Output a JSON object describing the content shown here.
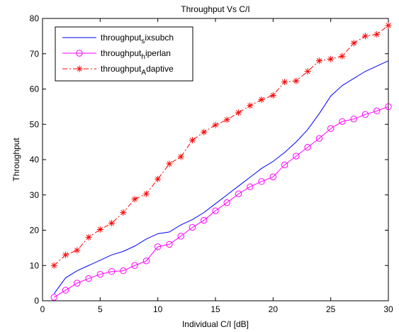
{
  "chart_data": {
    "type": "line",
    "title": "Throughput Vs C/I",
    "xlabel": "Individual C/I [dB]",
    "ylabel": "Throughput",
    "xlim": [
      0,
      30
    ],
    "ylim": [
      0,
      80
    ],
    "xticks": [
      0,
      5,
      10,
      15,
      20,
      25,
      30
    ],
    "yticks": [
      0,
      10,
      20,
      30,
      40,
      50,
      60,
      70,
      80
    ],
    "grid": false,
    "legend_position": "top-left",
    "x": [
      1,
      2,
      3,
      4,
      5,
      6,
      7,
      8,
      9,
      10,
      11,
      12,
      13,
      14,
      15,
      16,
      17,
      18,
      19,
      20,
      21,
      22,
      23,
      24,
      25,
      26,
      27,
      28,
      29,
      30
    ],
    "series": [
      {
        "name_main": "throughput",
        "name_sub": "s",
        "name_rest": "ixsubch",
        "color": "#0000ff",
        "line_style": "solid",
        "marker": "none",
        "values": [
          2,
          6.5,
          8.5,
          10,
          11.5,
          13,
          14,
          15.5,
          17.5,
          19,
          19.5,
          21.5,
          23,
          25,
          27.5,
          30,
          32.5,
          35,
          37.5,
          39.5,
          42,
          45,
          48.5,
          53,
          58,
          61,
          63,
          65,
          66.5,
          68
        ]
      },
      {
        "name_main": "throughput",
        "name_sub": "h",
        "name_rest": "iperlan",
        "color": "#ff00ff",
        "line_style": "solid",
        "marker": "circle",
        "values": [
          1,
          3,
          5,
          6.3,
          7.5,
          8.3,
          8.5,
          10,
          11.3,
          15.3,
          16,
          18.3,
          20.8,
          22.8,
          25.5,
          27.8,
          30.3,
          32.3,
          33.8,
          35.1,
          38.5,
          41,
          43.5,
          46,
          48.8,
          50.8,
          51.5,
          52.8,
          53.8,
          55
        ]
      },
      {
        "name_main": "throughput",
        "name_sub": "A",
        "name_rest": "daptive",
        "color": "#ff0000",
        "line_style": "dashdot",
        "marker": "asterisk",
        "values": [
          10,
          13,
          14.3,
          18,
          20.2,
          22,
          25,
          28.8,
          30.3,
          34.5,
          38.8,
          40.8,
          45.5,
          47.8,
          49.8,
          51.3,
          53.3,
          55.3,
          57,
          58.2,
          62,
          62.3,
          65,
          68,
          68.5,
          69.3,
          73,
          75,
          75.5,
          78
        ]
      }
    ]
  }
}
